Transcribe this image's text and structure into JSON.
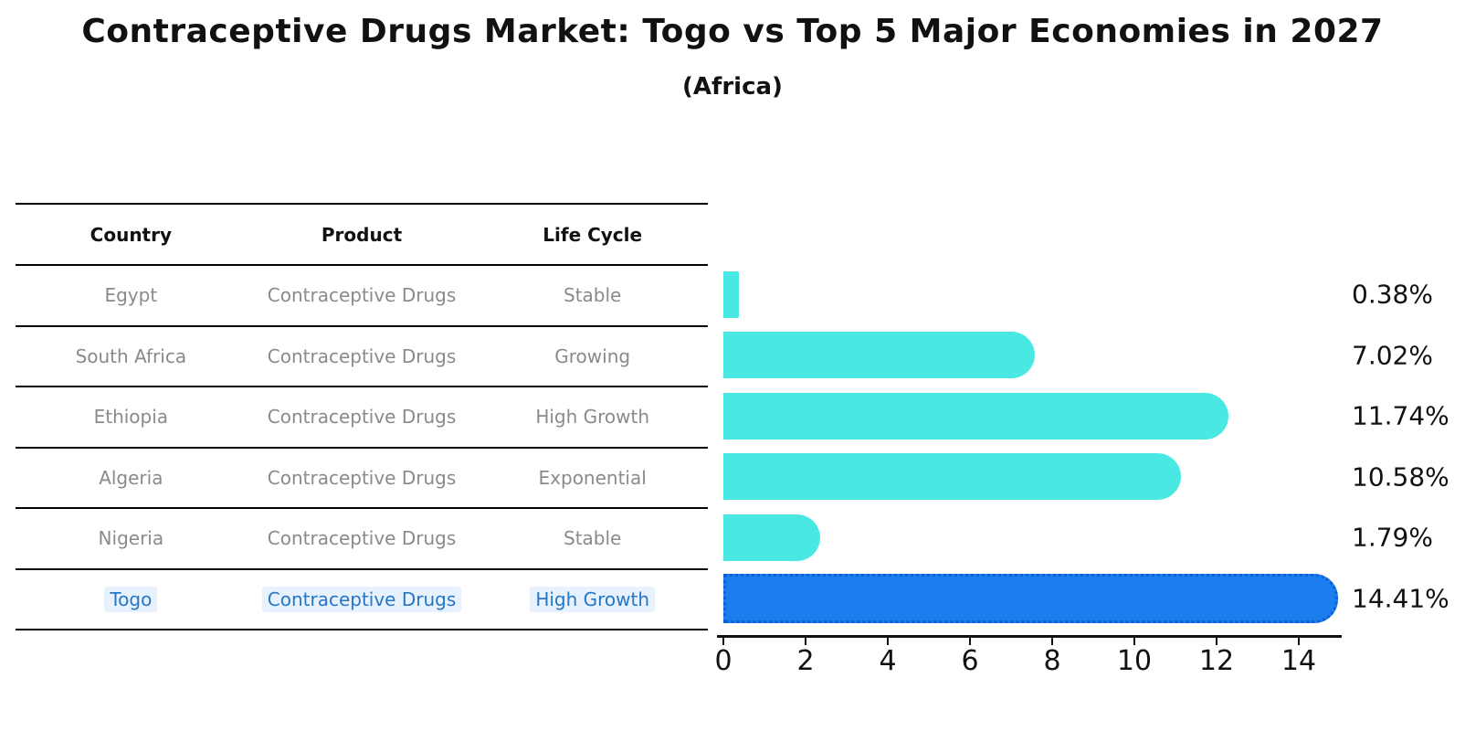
{
  "title": "Contraceptive Drugs Market: Togo vs Top 5 Major Economies in 2027",
  "subtitle": "(Africa)",
  "table": {
    "headers": [
      "Country",
      "Product",
      "Life Cycle"
    ],
    "rows": [
      {
        "country": "Egypt",
        "product": "Contraceptive Drugs",
        "life_cycle": "Stable",
        "highlight": false
      },
      {
        "country": "South Africa",
        "product": "Contraceptive Drugs",
        "life_cycle": "Growing",
        "highlight": false
      },
      {
        "country": "Ethiopia",
        "product": "Contraceptive Drugs",
        "life_cycle": "High Growth",
        "highlight": false
      },
      {
        "country": "Algeria",
        "product": "Contraceptive Drugs",
        "life_cycle": "Exponential",
        "highlight": false
      },
      {
        "country": "Nigeria",
        "product": "Contraceptive Drugs",
        "life_cycle": "Stable",
        "highlight": false
      },
      {
        "country": "Togo",
        "product": "Contraceptive Drugs",
        "life_cycle": "High Growth",
        "highlight": true
      }
    ]
  },
  "chart_data": {
    "type": "bar",
    "orientation": "horizontal",
    "categories": [
      "Egypt",
      "South Africa",
      "Ethiopia",
      "Algeria",
      "Nigeria",
      "Togo"
    ],
    "values": [
      0.38,
      7.02,
      11.74,
      10.58,
      1.79,
      14.41
    ],
    "value_labels": [
      "0.38%",
      "7.02%",
      "11.74%",
      "10.58%",
      "1.79%",
      "14.41%"
    ],
    "title": "Contraceptive Drugs Market: Togo vs Top 5 Major Economies in 2027",
    "subtitle": "(Africa)",
    "xlabel": "",
    "ylabel": "",
    "xlim": [
      0,
      15
    ],
    "x_ticks": [
      0,
      2,
      4,
      6,
      8,
      10,
      12,
      14
    ],
    "x_tick_labels": [
      "0",
      "2",
      "4",
      "6",
      "8",
      "10",
      "12",
      "14"
    ],
    "grid": false,
    "legend": false,
    "highlight_index": 5,
    "bar_color": "#4ae8e3",
    "highlight_bar_color": "#1b7dee",
    "highlight_text_color": "#2577c4",
    "row_text_color": "#8a8a8a",
    "header_text_color": "#111111"
  }
}
